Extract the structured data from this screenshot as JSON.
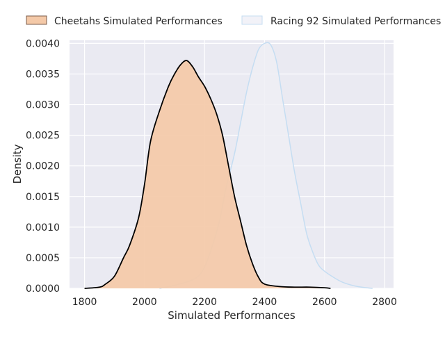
{
  "chart_data": {
    "type": "area",
    "xlabel": "Simulated Performances",
    "ylabel": "Density",
    "xlim": [
      1750,
      2830
    ],
    "ylim": [
      0,
      0.00405
    ],
    "xticks": [
      1800,
      2000,
      2200,
      2400,
      2600,
      2800
    ],
    "xtick_labels": [
      "1800",
      "2000",
      "2200",
      "2400",
      "2600",
      "2800"
    ],
    "yticks": [
      0,
      0.0005,
      0.001,
      0.0015,
      0.002,
      0.0025,
      0.003,
      0.0035,
      0.004
    ],
    "ytick_labels": [
      "0.0000",
      "0.0005",
      "0.0010",
      "0.0015",
      "0.0020",
      "0.0025",
      "0.0030",
      "0.0035",
      "0.0040"
    ],
    "grid": true,
    "legend_position": "top",
    "series": [
      {
        "name": "Cheetahs Simulated Performances",
        "fill": "#f4c9a8",
        "stroke": "#000000",
        "points": [
          [
            1800,
            0.0
          ],
          [
            1850,
            2e-05
          ],
          [
            1870,
            7e-05
          ],
          [
            1900,
            0.0002
          ],
          [
            1930,
            0.0005
          ],
          [
            1950,
            0.0007
          ],
          [
            1980,
            0.00115
          ],
          [
            2000,
            0.0017
          ],
          [
            2020,
            0.0024
          ],
          [
            2050,
            0.0029
          ],
          [
            2080,
            0.0033
          ],
          [
            2100,
            0.0035
          ],
          [
            2120,
            0.00365
          ],
          [
            2140,
            0.00372
          ],
          [
            2160,
            0.00362
          ],
          [
            2180,
            0.00345
          ],
          [
            2200,
            0.0033
          ],
          [
            2220,
            0.0031
          ],
          [
            2240,
            0.00285
          ],
          [
            2260,
            0.0025
          ],
          [
            2280,
            0.002
          ],
          [
            2300,
            0.0015
          ],
          [
            2320,
            0.0011
          ],
          [
            2340,
            0.0007
          ],
          [
            2360,
            0.0004
          ],
          [
            2380,
            0.00018
          ],
          [
            2400,
            7e-05
          ],
          [
            2450,
            3e-05
          ],
          [
            2500,
            2e-05
          ],
          [
            2550,
            2e-05
          ],
          [
            2600,
            1e-05
          ],
          [
            2620,
            0.0
          ]
        ]
      },
      {
        "name": "Racing 92 Simulated Performances",
        "fill": "#eeeef5",
        "stroke": "#c5ddf2",
        "points": [
          [
            2050,
            0.0
          ],
          [
            2100,
            5e-05
          ],
          [
            2150,
            0.00012
          ],
          [
            2180,
            0.0002
          ],
          [
            2200,
            0.00035
          ],
          [
            2220,
            0.0006
          ],
          [
            2250,
            0.0011
          ],
          [
            2270,
            0.0016
          ],
          [
            2300,
            0.0022
          ],
          [
            2320,
            0.0027
          ],
          [
            2340,
            0.0032
          ],
          [
            2360,
            0.0036
          ],
          [
            2380,
            0.0039
          ],
          [
            2400,
            0.004
          ],
          [
            2420,
            0.00398
          ],
          [
            2440,
            0.0037
          ],
          [
            2460,
            0.0031
          ],
          [
            2480,
            0.0025
          ],
          [
            2500,
            0.0019
          ],
          [
            2520,
            0.0014
          ],
          [
            2540,
            0.0009
          ],
          [
            2560,
            0.0006
          ],
          [
            2580,
            0.00038
          ],
          [
            2600,
            0.00028
          ],
          [
            2630,
            0.00018
          ],
          [
            2660,
            0.0001
          ],
          [
            2700,
            4e-05
          ],
          [
            2740,
            1e-05
          ],
          [
            2760,
            0.0
          ]
        ]
      }
    ]
  }
}
